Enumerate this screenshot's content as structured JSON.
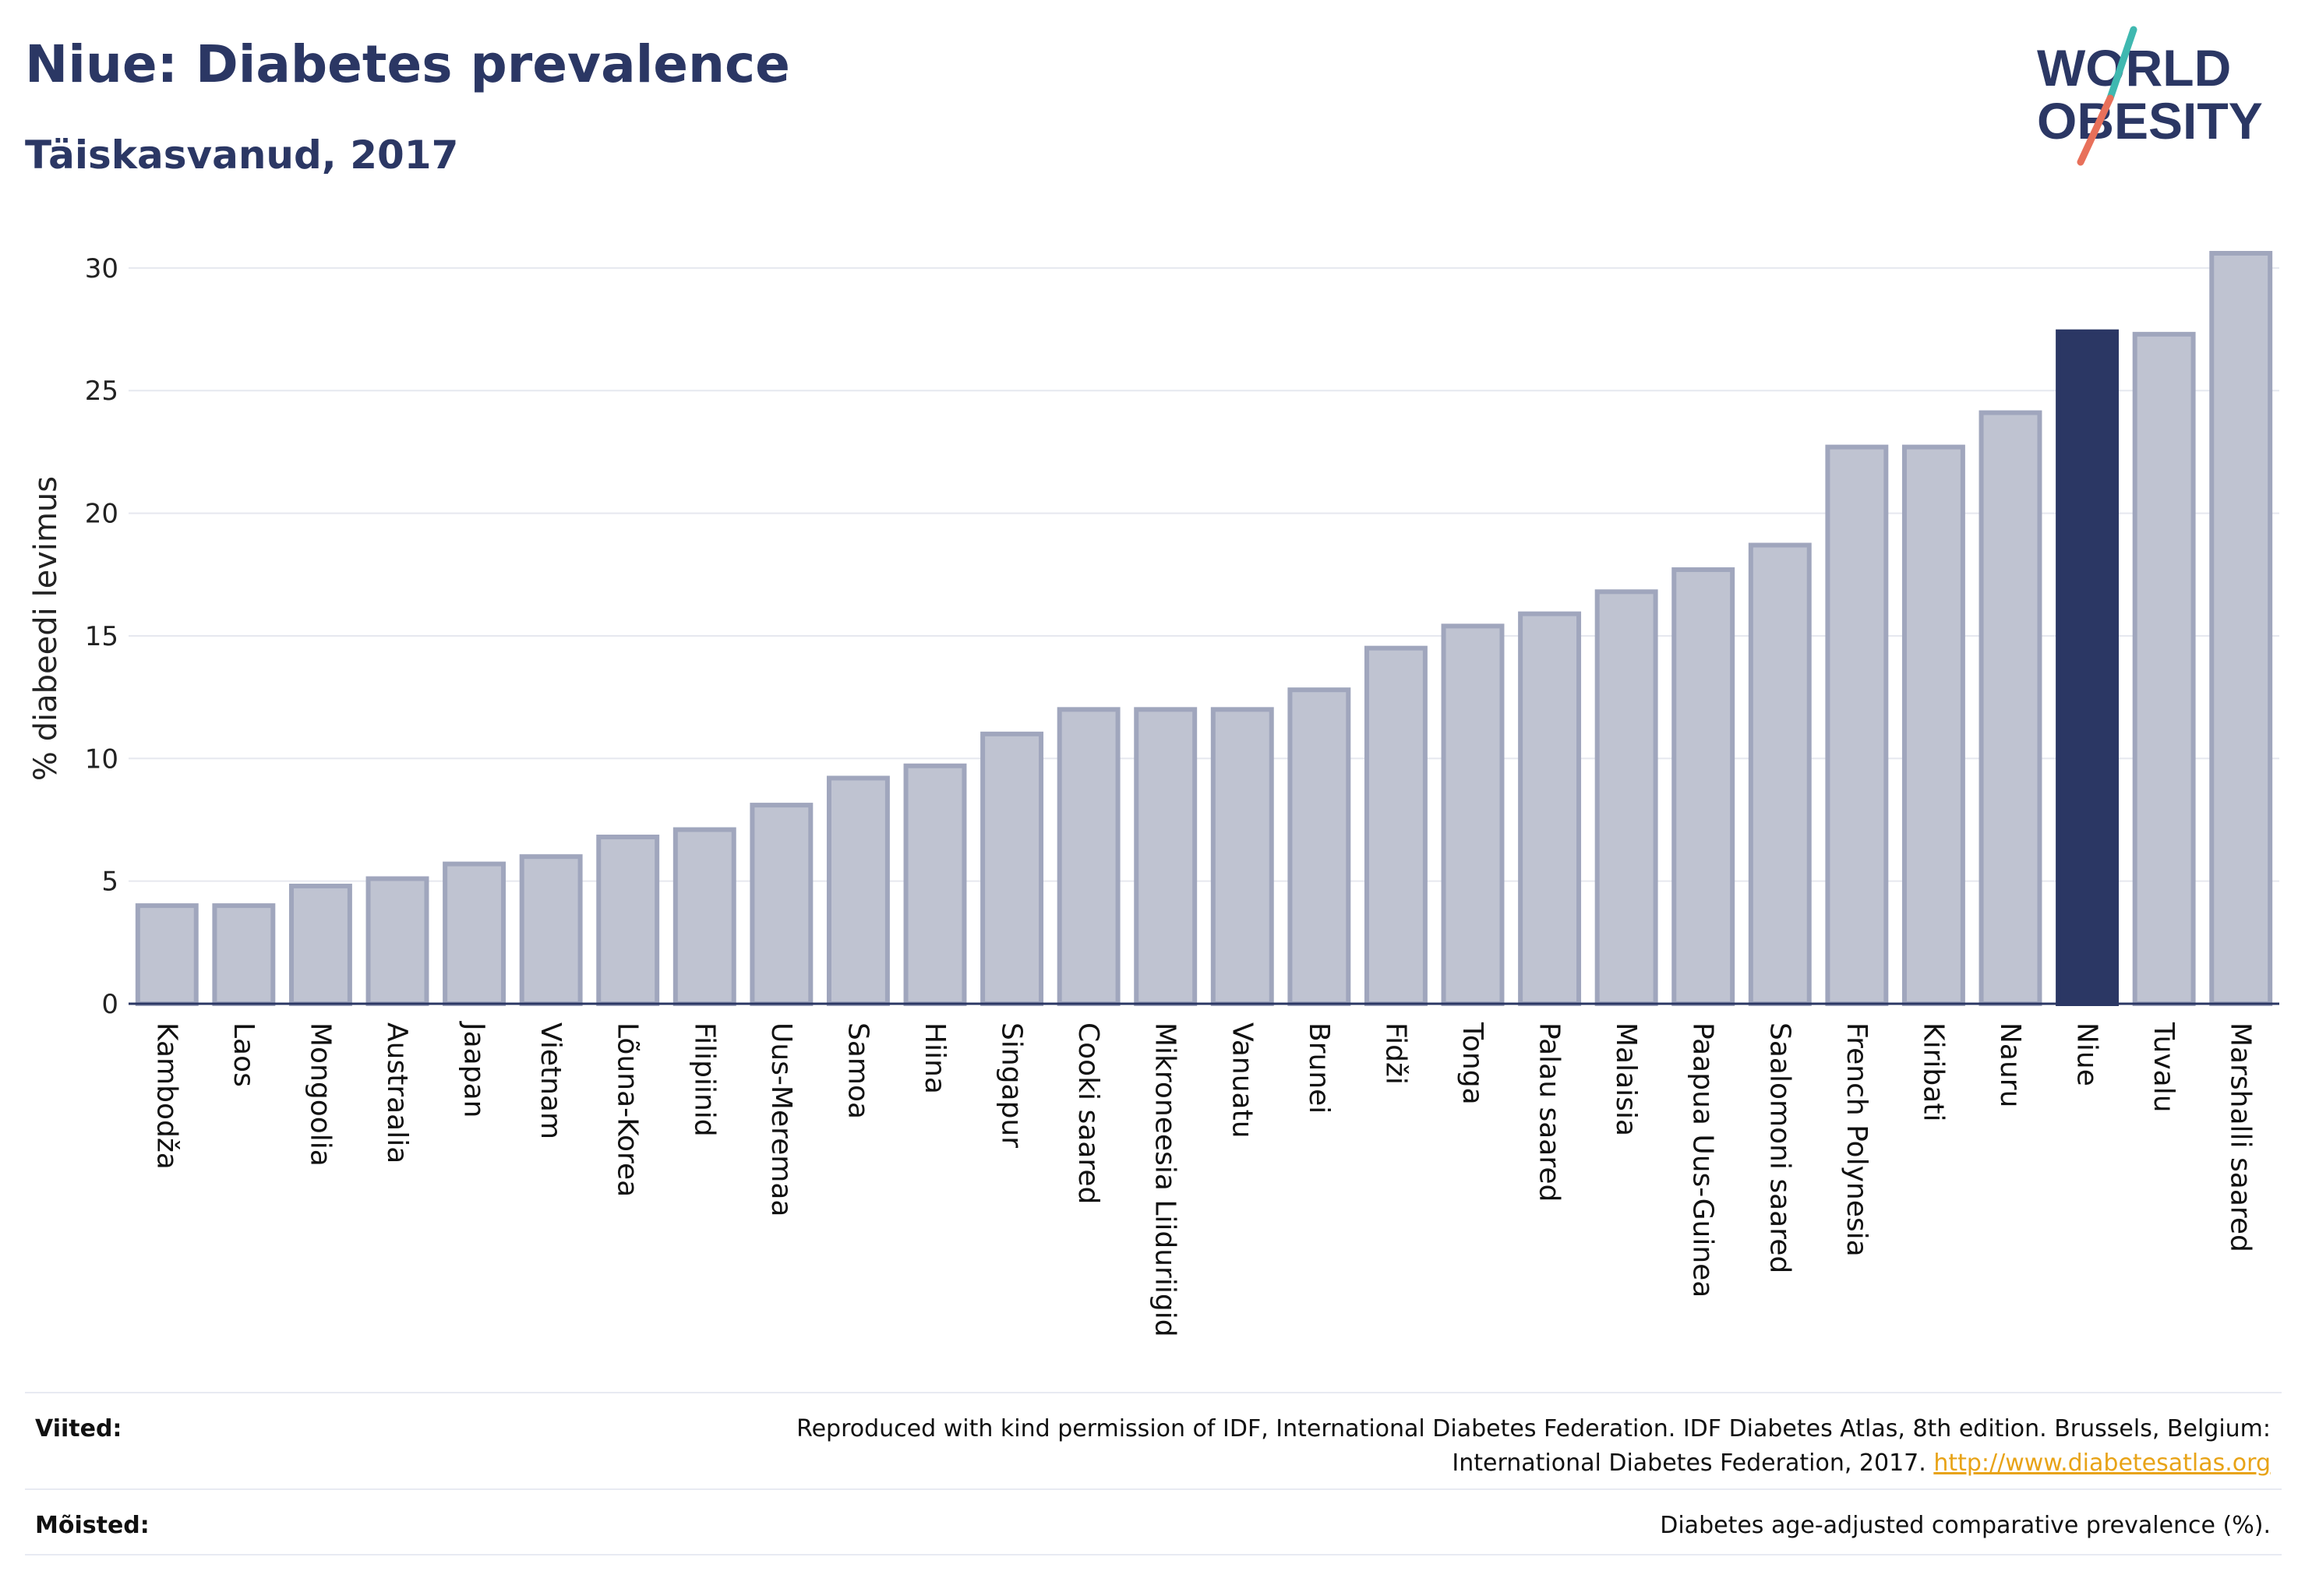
{
  "header": {
    "title": "Niue: Diabetes prevalence",
    "subtitle": "Täiskasvanud, 2017",
    "logo_line1": "WORLD",
    "logo_line2": "OBESITY"
  },
  "colors": {
    "bar": "#bfc3d1",
    "bar_stroke": "#a0a6bd",
    "highlight": "#2b3764",
    "axis": "#2b3764",
    "grid": "#e6e8ef",
    "logo_teal": "#3fb8b0",
    "logo_coral": "#e8705a"
  },
  "chart_data": {
    "type": "bar",
    "ylabel": "% diabeedi levimus",
    "ylim": [
      0,
      30.6
    ],
    "yticks": [
      0,
      5,
      10,
      15,
      20,
      25,
      30
    ],
    "highlight": "Niue",
    "categories": [
      "Kambodža",
      "Laos",
      "Mongoolia",
      "Austraalia",
      "Jaapan",
      "Vietnam",
      "Lõuna-Korea",
      "Filipiinid",
      "Uus-Meremaa",
      "Samoa",
      "Hiina",
      "Singapur",
      "Cooki saared",
      "Mikroneesia Liiduriigid",
      "Vanuatu",
      "Brunei",
      "Fidži",
      "Tonga",
      "Palau saared",
      "Malaisia",
      "Paapua Uus-Guinea",
      "Saalomoni saared",
      "French Polynesia",
      "Kiribati",
      "Nauru",
      "Niue",
      "Tuvalu",
      "Marshalli saared"
    ],
    "values": [
      4.0,
      4.0,
      4.8,
      5.1,
      5.7,
      6.0,
      6.8,
      7.1,
      8.1,
      9.2,
      9.7,
      11.0,
      12.0,
      12.0,
      12.0,
      12.8,
      14.5,
      15.4,
      15.9,
      16.8,
      17.7,
      18.7,
      22.7,
      22.7,
      24.1,
      27.4,
      27.3,
      30.6
    ]
  },
  "footer": {
    "sources_label": "Viited:",
    "sources_text_1": "Reproduced with kind permission of IDF, International Diabetes Federation. IDF Diabetes Atlas, 8th edition. Brussels, Belgium:",
    "sources_text_2": "International Diabetes Federation, 2017.",
    "sources_link": "http://www.diabetesatlas.org",
    "definitions_label": "Mõisted:",
    "definitions_text": "Diabetes age-adjusted comparative prevalence (%)."
  }
}
